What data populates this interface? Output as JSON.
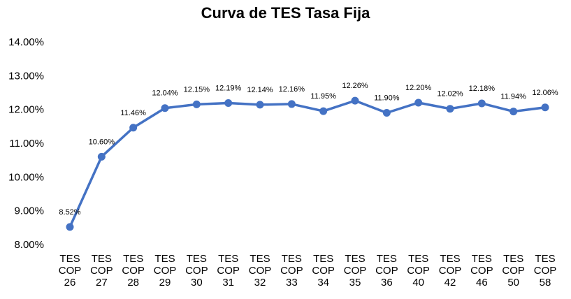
{
  "chart_data": {
    "type": "line",
    "title": "Curva de TES Tasa Fija",
    "xlabel": "",
    "ylabel": "",
    "ylim": [
      8,
      14
    ],
    "yticks": [
      "14.00%",
      "13.00%",
      "12.00%",
      "11.00%",
      "10.00%",
      "9.00%",
      "8.00%"
    ],
    "ytick_values": [
      14,
      13,
      12,
      11,
      10,
      9,
      8
    ],
    "categories": [
      [
        "TES",
        "COP",
        "26"
      ],
      [
        "TES",
        "COP",
        "27"
      ],
      [
        "TES",
        "COP",
        "28"
      ],
      [
        "TES",
        "COP",
        "29"
      ],
      [
        "TES",
        "COP",
        "30"
      ],
      [
        "TES",
        "COP",
        "31"
      ],
      [
        "TES",
        "COP",
        "32"
      ],
      [
        "TES",
        "COP",
        "33"
      ],
      [
        "TES",
        "COP",
        "34"
      ],
      [
        "TES",
        "COP",
        "35"
      ],
      [
        "TES",
        "COP",
        "36"
      ],
      [
        "TES",
        "COP",
        "40"
      ],
      [
        "TES",
        "COP",
        "42"
      ],
      [
        "TES",
        "COP",
        "46"
      ],
      [
        "TES",
        "COP",
        "50"
      ],
      [
        "TES",
        "COP",
        "58"
      ]
    ],
    "values": [
      8.52,
      10.6,
      11.46,
      12.04,
      12.15,
      12.19,
      12.14,
      12.16,
      11.95,
      12.26,
      11.9,
      12.2,
      12.02,
      12.18,
      11.94,
      12.06
    ],
    "labels": [
      "8.52%",
      "10.60%",
      "11.46%",
      "12.04%",
      "12.15%",
      "12.19%",
      "12.14%",
      "12.16%",
      "11.95%",
      "12.26%",
      "11.90%",
      "12.20%",
      "12.02%",
      "12.18%",
      "11.94%",
      "12.06%"
    ],
    "grid": false,
    "legend": "none",
    "color": "#4472C4"
  }
}
